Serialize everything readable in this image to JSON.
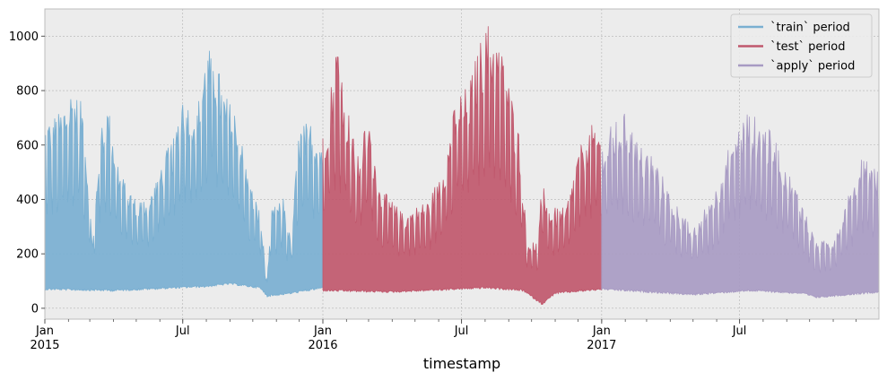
{
  "chart_data": {
    "type": "line",
    "title": "",
    "xlabel": "timestamp",
    "ylabel": "",
    "x_range": [
      "2015-01-01",
      "2017-12-31"
    ],
    "ylim": [
      -40,
      1100
    ],
    "yticks": [
      0,
      200,
      400,
      600,
      800,
      1000
    ],
    "xticks": [
      {
        "date": "2015-01-01",
        "label": "Jan",
        "sublabel": "2015"
      },
      {
        "date": "2015-07-01",
        "label": "Jul",
        "sublabel": ""
      },
      {
        "date": "2016-01-01",
        "label": "Jan",
        "sublabel": "2016"
      },
      {
        "date": "2016-07-01",
        "label": "Jul",
        "sublabel": ""
      },
      {
        "date": "2017-01-01",
        "label": "Jan",
        "sublabel": "2017"
      },
      {
        "date": "2017-07-01",
        "label": "Jul",
        "sublabel": ""
      }
    ],
    "grid": true,
    "legend_position": "top-right",
    "series": [
      {
        "name": "`train` period",
        "color": "#7aafd1",
        "start": "2015-01-01",
        "end": "2016-01-01",
        "upper": [
          {
            "x": "2015-01-01",
            "y": 690
          },
          {
            "x": "2015-01-20",
            "y": 720
          },
          {
            "x": "2015-02-05",
            "y": 810
          },
          {
            "x": "2015-02-20",
            "y": 750
          },
          {
            "x": "2015-03-05",
            "y": 240
          },
          {
            "x": "2015-03-15",
            "y": 680
          },
          {
            "x": "2015-03-25",
            "y": 750
          },
          {
            "x": "2015-04-10",
            "y": 500
          },
          {
            "x": "2015-05-01",
            "y": 400
          },
          {
            "x": "2015-05-20",
            "y": 420
          },
          {
            "x": "2015-06-05",
            "y": 560
          },
          {
            "x": "2015-06-20",
            "y": 630
          },
          {
            "x": "2015-07-01",
            "y": 810
          },
          {
            "x": "2015-07-20",
            "y": 740
          },
          {
            "x": "2015-08-01",
            "y": 950
          },
          {
            "x": "2015-08-10",
            "y": 960
          },
          {
            "x": "2015-08-25",
            "y": 790
          },
          {
            "x": "2015-09-10",
            "y": 720
          },
          {
            "x": "2015-09-25",
            "y": 480
          },
          {
            "x": "2015-10-10",
            "y": 360
          },
          {
            "x": "2015-10-20",
            "y": 100
          },
          {
            "x": "2015-10-25",
            "y": 360
          },
          {
            "x": "2015-11-10",
            "y": 410
          },
          {
            "x": "2015-11-20",
            "y": 250
          },
          {
            "x": "2015-12-01",
            "y": 670
          },
          {
            "x": "2015-12-15",
            "y": 690
          },
          {
            "x": "2016-01-01",
            "y": 620
          }
        ],
        "lower": [
          {
            "x": "2015-01-01",
            "y": 75
          },
          {
            "x": "2015-04-01",
            "y": 70
          },
          {
            "x": "2015-08-01",
            "y": 85
          },
          {
            "x": "2015-09-01",
            "y": 95
          },
          {
            "x": "2015-10-10",
            "y": 80
          },
          {
            "x": "2015-10-20",
            "y": 50
          },
          {
            "x": "2015-11-20",
            "y": 60
          },
          {
            "x": "2016-01-01",
            "y": 80
          }
        ]
      },
      {
        "name": "`test` period",
        "color": "#c0586d",
        "start": "2016-01-01",
        "end": "2017-01-01",
        "upper": [
          {
            "x": "2016-01-01",
            "y": 640
          },
          {
            "x": "2016-01-10",
            "y": 790
          },
          {
            "x": "2016-01-20",
            "y": 1000
          },
          {
            "x": "2016-02-01",
            "y": 770
          },
          {
            "x": "2016-02-15",
            "y": 550
          },
          {
            "x": "2016-03-01",
            "y": 720
          },
          {
            "x": "2016-03-15",
            "y": 450
          },
          {
            "x": "2016-04-15",
            "y": 350
          },
          {
            "x": "2016-05-20",
            "y": 400
          },
          {
            "x": "2016-06-10",
            "y": 560
          },
          {
            "x": "2016-06-25",
            "y": 790
          },
          {
            "x": "2016-07-10",
            "y": 820
          },
          {
            "x": "2016-07-25",
            "y": 980
          },
          {
            "x": "2016-08-05",
            "y": 1050
          },
          {
            "x": "2016-08-25",
            "y": 930
          },
          {
            "x": "2016-09-15",
            "y": 640
          },
          {
            "x": "2016-09-25",
            "y": 250
          },
          {
            "x": "2016-10-10",
            "y": 250
          },
          {
            "x": "2016-10-15",
            "y": 500
          },
          {
            "x": "2016-10-25",
            "y": 370
          },
          {
            "x": "2016-11-15",
            "y": 370
          },
          {
            "x": "2016-12-01",
            "y": 570
          },
          {
            "x": "2016-12-15",
            "y": 680
          },
          {
            "x": "2017-01-01",
            "y": 660
          }
        ],
        "lower": [
          {
            "x": "2016-01-01",
            "y": 70
          },
          {
            "x": "2016-04-01",
            "y": 65
          },
          {
            "x": "2016-08-01",
            "y": 80
          },
          {
            "x": "2016-09-20",
            "y": 70
          },
          {
            "x": "2016-10-15",
            "y": 20
          },
          {
            "x": "2016-11-01",
            "y": 60
          },
          {
            "x": "2017-01-01",
            "y": 75
          }
        ]
      },
      {
        "name": "`apply` period",
        "color": "#a89bc3",
        "start": "2017-01-01",
        "end": "2017-12-31",
        "upper": [
          {
            "x": "2017-01-01",
            "y": 610
          },
          {
            "x": "2017-01-15",
            "y": 680
          },
          {
            "x": "2017-02-01",
            "y": 720
          },
          {
            "x": "2017-02-20",
            "y": 600
          },
          {
            "x": "2017-03-10",
            "y": 570
          },
          {
            "x": "2017-04-01",
            "y": 420
          },
          {
            "x": "2017-05-01",
            "y": 290
          },
          {
            "x": "2017-06-01",
            "y": 450
          },
          {
            "x": "2017-06-20",
            "y": 620
          },
          {
            "x": "2017-07-10",
            "y": 730
          },
          {
            "x": "2017-07-25",
            "y": 700
          },
          {
            "x": "2017-08-15",
            "y": 640
          },
          {
            "x": "2017-09-10",
            "y": 470
          },
          {
            "x": "2017-09-25",
            "y": 360
          },
          {
            "x": "2017-10-10",
            "y": 240
          },
          {
            "x": "2017-11-01",
            "y": 260
          },
          {
            "x": "2017-11-20",
            "y": 410
          },
          {
            "x": "2017-12-10",
            "y": 580
          },
          {
            "x": "2017-12-31",
            "y": 500
          }
        ],
        "lower": [
          {
            "x": "2017-01-01",
            "y": 75
          },
          {
            "x": "2017-05-01",
            "y": 55
          },
          {
            "x": "2017-07-15",
            "y": 70
          },
          {
            "x": "2017-09-20",
            "y": 60
          },
          {
            "x": "2017-10-10",
            "y": 45
          },
          {
            "x": "2017-12-31",
            "y": 65
          }
        ]
      }
    ]
  }
}
